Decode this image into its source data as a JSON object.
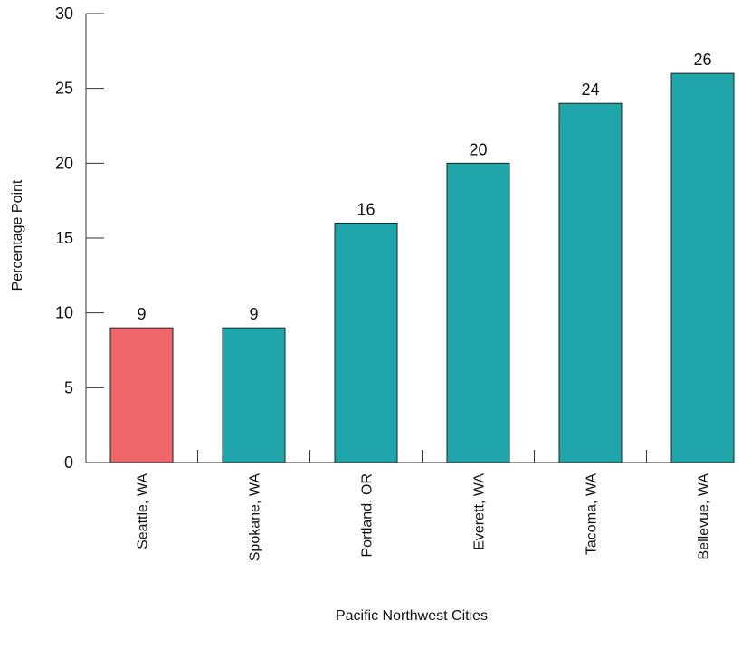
{
  "chart_data": {
    "type": "bar",
    "xlabel": "Pacific Northwest Cities",
    "ylabel": "Percentage Point",
    "ylim": [
      0,
      30
    ],
    "yticks": [
      0,
      5,
      10,
      15,
      20,
      25,
      30
    ],
    "categories": [
      "Seattle, WA",
      "Spokane, WA",
      "Portland, OR",
      "Everett, WA",
      "Tacoma, WA",
      "Bellevue, WA"
    ],
    "values": [
      9,
      9,
      16,
      20,
      24,
      26
    ],
    "data_labels": [
      "9",
      "9",
      "16",
      "20",
      "24",
      "26"
    ],
    "bar_colors": [
      "#f0676a",
      "#1fa5aa",
      "#1fa5aa",
      "#1fa5aa",
      "#1fa5aa",
      "#1fa5aa"
    ],
    "highlight_category": "Seattle, WA",
    "grid": false,
    "legend": "none"
  }
}
